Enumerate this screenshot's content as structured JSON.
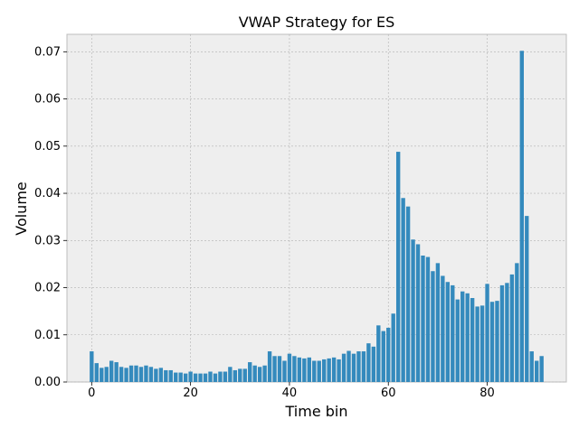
{
  "chart_data": {
    "type": "bar",
    "title": "VWAP Strategy for ES",
    "xlabel": "Time bin",
    "ylabel": "Volume",
    "xlim": [
      -5,
      96
    ],
    "ylim": [
      0,
      0.0737
    ],
    "xticks": [
      0,
      20,
      40,
      60,
      80
    ],
    "xtick_labels": [
      "0",
      "20",
      "40",
      "60",
      "80"
    ],
    "yticks": [
      0,
      0.01,
      0.02,
      0.03,
      0.04,
      0.05,
      0.06,
      0.07
    ],
    "ytick_labels": [
      "0.00",
      "0.01",
      "0.02",
      "0.03",
      "0.04",
      "0.05",
      "0.06",
      "0.07"
    ],
    "grid": true,
    "bar_color": "#348abd",
    "background_color": "#eeeeee",
    "grid_color": "#b2b2b2",
    "x": [
      0,
      1,
      2,
      3,
      4,
      5,
      6,
      7,
      8,
      9,
      10,
      11,
      12,
      13,
      14,
      15,
      16,
      17,
      18,
      19,
      20,
      21,
      22,
      23,
      24,
      25,
      26,
      27,
      28,
      29,
      30,
      31,
      32,
      33,
      34,
      35,
      36,
      37,
      38,
      39,
      40,
      41,
      42,
      43,
      44,
      45,
      46,
      47,
      48,
      49,
      50,
      51,
      52,
      53,
      54,
      55,
      56,
      57,
      58,
      59,
      60,
      61,
      62,
      63,
      64,
      65,
      66,
      67,
      68,
      69,
      70,
      71,
      72,
      73,
      74,
      75,
      76,
      77,
      78,
      79,
      80,
      81,
      82,
      83,
      84,
      85,
      86,
      87,
      88,
      89,
      90,
      91
    ],
    "values": [
      0.0065,
      0.004,
      0.003,
      0.0032,
      0.0045,
      0.0042,
      0.0032,
      0.003,
      0.0035,
      0.0035,
      0.0032,
      0.0035,
      0.0032,
      0.0028,
      0.003,
      0.0025,
      0.0025,
      0.002,
      0.002,
      0.0018,
      0.0022,
      0.0018,
      0.0018,
      0.0018,
      0.0022,
      0.0018,
      0.0022,
      0.0022,
      0.0032,
      0.0025,
      0.0028,
      0.0028,
      0.0042,
      0.0035,
      0.0032,
      0.0035,
      0.0065,
      0.0055,
      0.0055,
      0.0045,
      0.006,
      0.0055,
      0.0052,
      0.005,
      0.0052,
      0.0045,
      0.0045,
      0.0048,
      0.005,
      0.0052,
      0.0048,
      0.006,
      0.0066,
      0.006,
      0.0065,
      0.0065,
      0.0082,
      0.0075,
      0.012,
      0.0108,
      0.0115,
      0.0145,
      0.0488,
      0.039,
      0.0372,
      0.0302,
      0.0292,
      0.0268,
      0.0265,
      0.0235,
      0.0252,
      0.0225,
      0.0212,
      0.0205,
      0.0175,
      0.0192,
      0.0188,
      0.0178,
      0.016,
      0.0162,
      0.0208,
      0.017,
      0.0172,
      0.0205,
      0.021,
      0.0228,
      0.0252,
      0.0702,
      0.0352,
      0.0065,
      0.0045,
      0.0055
    ]
  }
}
